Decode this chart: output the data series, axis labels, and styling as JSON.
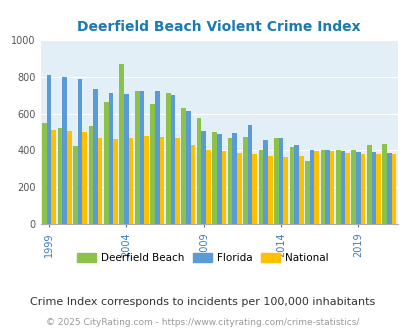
{
  "title": "Deerfield Beach Violent Crime Index",
  "years": [
    1999,
    2000,
    2001,
    2002,
    2003,
    2004,
    2005,
    2006,
    2007,
    2008,
    2009,
    2010,
    2011,
    2012,
    2013,
    2014,
    2015,
    2016,
    2017,
    2018,
    2019,
    2020,
    2021
  ],
  "deerfield": [
    550,
    520,
    425,
    530,
    665,
    870,
    720,
    650,
    710,
    630,
    575,
    500,
    465,
    475,
    400,
    470,
    420,
    345,
    400,
    405,
    405,
    430,
    435
  ],
  "florida": [
    810,
    800,
    785,
    735,
    710,
    705,
    720,
    720,
    700,
    615,
    505,
    490,
    495,
    540,
    455,
    465,
    430,
    405,
    405,
    395,
    390,
    390,
    385
  ],
  "national": [
    510,
    505,
    500,
    465,
    460,
    465,
    480,
    475,
    465,
    430,
    405,
    395,
    385,
    380,
    370,
    365,
    370,
    395,
    395,
    385,
    380,
    380,
    380
  ],
  "color_deerfield": "#8bc34a",
  "color_florida": "#5b9bd5",
  "color_national": "#ffc000",
  "bg_color": "#e2eff6",
  "ylim": [
    0,
    1000
  ],
  "yticks": [
    0,
    200,
    400,
    600,
    800,
    1000
  ],
  "xlabel_ticks": [
    1999,
    2004,
    2009,
    2014,
    2019
  ],
  "note": "Crime Index corresponds to incidents per 100,000 inhabitants",
  "copyright": "© 2025 CityRating.com - https://www.cityrating.com/crime-statistics/",
  "title_color": "#1a7ab5",
  "tick_color_x": "#3a7abf",
  "tick_color_y": "#555555",
  "note_color": "#333333",
  "copyright_color": "#999999",
  "note_fontsize": 8.0,
  "copyright_fontsize": 6.5
}
